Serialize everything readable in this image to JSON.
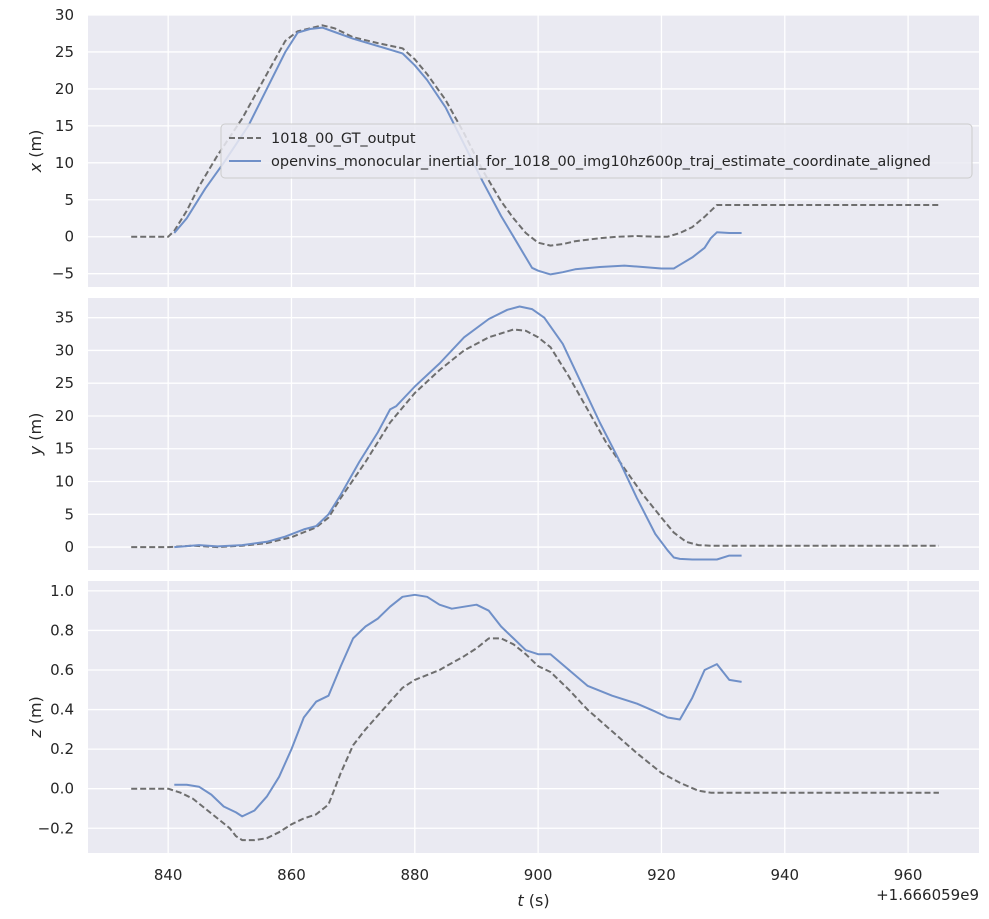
{
  "chart_data": {
    "type": "line",
    "x_label_var": "t",
    "x_label_unit": " (s)",
    "x_offset_text": "+1.666059e9",
    "x_ticks": [
      840,
      860,
      880,
      900,
      920,
      940,
      960
    ],
    "xlim": [
      827,
      971.5
    ],
    "legend": {
      "placement": "top-center of first panel",
      "entries": [
        "1018_00_GT_output",
        "openvins_monocular_inertial_for_1018_00_img10hz600p_traj_estimate_coordinate_aligned"
      ]
    },
    "colors": {
      "gt": "#6e6e6e",
      "est": "#7090c8",
      "background": "#eaeaf2",
      "grid": "#ffffff"
    },
    "panels": [
      {
        "var": "x",
        "unit": " (m)",
        "ylim": [
          -6.8,
          30
        ],
        "yticks": [
          -5,
          0,
          5,
          10,
          15,
          20,
          25,
          30
        ],
        "yticklabels": [
          "−5",
          "0",
          "5",
          "10",
          "15",
          "20",
          "25",
          "30"
        ],
        "series": [
          {
            "name": "1018_00_GT_output",
            "style": "dashed",
            "x": [
              834,
              837,
              840,
              841,
              843,
              845,
              848,
              852,
              856,
              859,
              861,
              863,
              865,
              867,
              870,
              874,
              878,
              880,
              882,
              885,
              888,
              891,
              894,
              896,
              898,
              900,
              902,
              904,
              906,
              908,
              910,
              913,
              916,
              919,
              921,
              923,
              925,
              927,
              929,
              935,
              945,
              955,
              965
            ],
            "y": [
              0,
              0,
              0,
              0.8,
              3.5,
              6.8,
              11,
              16,
              22,
              26.5,
              27.8,
              28.2,
              28.6,
              28.2,
              27,
              26.2,
              25.5,
              24,
              22,
              18.5,
              14,
              9,
              4.8,
              2.5,
              0.5,
              -0.8,
              -1.2,
              -1,
              -0.6,
              -0.4,
              -0.2,
              0,
              0.1,
              0,
              0,
              0.5,
              1.3,
              2.7,
              4.3,
              4.3,
              4.3,
              4.3,
              4.3
            ]
          },
          {
            "name": "openvins_monocular_inertial_for_1018_00_img10hz600p_traj_estimate_coordinate_aligned",
            "style": "solid",
            "x": [
              841,
              843,
              846,
              849,
              853,
              856,
              859,
              861,
              863,
              865,
              867,
              870,
              874,
              878,
              880,
              882,
              885,
              888,
              891,
              894,
              896,
              898,
              899,
              900,
              902,
              904,
              906,
              910,
              914,
              917,
              920,
              922,
              923,
              925,
              927,
              928,
              929,
              931,
              933
            ],
            "y": [
              0.5,
              2.5,
              6.5,
              10,
              15,
              20,
              25,
              27.6,
              28.1,
              28.3,
              27.7,
              26.8,
              25.8,
              24.8,
              23.2,
              21.2,
              17.5,
              12.5,
              7.5,
              2.8,
              0,
              -2.8,
              -4.2,
              -4.6,
              -5.1,
              -4.8,
              -4.4,
              -4.1,
              -3.9,
              -4.1,
              -4.3,
              -4.3,
              -3.8,
              -2.8,
              -1.5,
              -0.2,
              0.6,
              0.5,
              0.5
            ]
          }
        ]
      },
      {
        "var": "y",
        "unit": " (m)",
        "ylim": [
          -3.5,
          38
        ],
        "yticks": [
          0,
          5,
          10,
          15,
          20,
          25,
          30,
          35
        ],
        "yticklabels": [
          "0",
          "5",
          "10",
          "15",
          "20",
          "25",
          "30",
          "35"
        ],
        "series": [
          {
            "name": "1018_00_GT_output",
            "style": "dashed",
            "x": [
              834,
              840,
              844,
              848,
              852,
              856,
              860,
              864,
              866,
              868,
              872,
              876,
              880,
              884,
              888,
              892,
              896,
              898,
              900,
              902,
              905,
              908,
              911,
              914,
              917,
              920,
              922,
              924,
              926,
              928,
              935,
              945,
              955,
              965
            ],
            "y": [
              0,
              0,
              0.2,
              0,
              0.2,
              0.6,
              1.5,
              3,
              4.5,
              7.5,
              13,
              19,
              23.5,
              27,
              30,
              32,
              33.2,
              33,
              32,
              30.5,
              26,
              21,
              16,
              12,
              8,
              4.5,
              2.2,
              0.8,
              0.3,
              0.2,
              0.2,
              0.2,
              0.2,
              0.2
            ]
          },
          {
            "name": "openvins_monocular_inertial_for_1018_00_img10hz600p_traj_estimate_coordinate_aligned",
            "style": "solid",
            "x": [
              841,
              845,
              848,
              852,
              856,
              859,
              862,
              864,
              866,
              868,
              871,
              874,
              876,
              877,
              880,
              884,
              888,
              892,
              895,
              897,
              899,
              901,
              904,
              907,
              910,
              913,
              916,
              919,
              921,
              922,
              923,
              925,
              927,
              929,
              931,
              933
            ],
            "y": [
              0,
              0.3,
              0.1,
              0.3,
              0.8,
              1.6,
              2.7,
              3.2,
              5,
              8,
              13,
              17.5,
              21,
              21.5,
              24.5,
              28,
              32,
              34.8,
              36.2,
              36.7,
              36.3,
              35,
              31,
              25,
              19,
              13.5,
              7.5,
              2,
              -0.5,
              -1.6,
              -1.8,
              -1.9,
              -1.9,
              -1.9,
              -1.3,
              -1.3
            ]
          }
        ]
      },
      {
        "var": "z",
        "unit": " (m)",
        "ylim": [
          -0.325,
          1.05
        ],
        "yticks": [
          -0.2,
          0,
          0.2,
          0.4,
          0.6,
          0.8,
          1.0
        ],
        "yticklabels": [
          "−0.2",
          "0.0",
          "0.2",
          "0.4",
          "0.6",
          "0.8",
          "1.0"
        ],
        "series": [
          {
            "name": "1018_00_GT_output",
            "style": "dashed",
            "x": [
              834,
              838,
              840,
              842,
              844,
              846,
              848,
              850,
              851,
              852,
              854,
              856,
              858,
              860,
              862,
              864,
              866,
              868,
              870,
              872,
              874,
              876,
              878,
              880,
              884,
              888,
              890,
              892,
              894,
              896,
              898,
              900,
              902,
              905,
              908,
              912,
              916,
              920,
              923,
              926,
              928,
              935,
              945,
              955,
              965
            ],
            "y": [
              0,
              0,
              0,
              -0.02,
              -0.05,
              -0.1,
              -0.15,
              -0.2,
              -0.24,
              -0.26,
              -0.26,
              -0.25,
              -0.22,
              -0.18,
              -0.15,
              -0.13,
              -0.08,
              0.08,
              0.22,
              0.3,
              0.37,
              0.44,
              0.51,
              0.55,
              0.6,
              0.67,
              0.71,
              0.76,
              0.76,
              0.73,
              0.68,
              0.62,
              0.59,
              0.5,
              0.4,
              0.29,
              0.18,
              0.08,
              0.03,
              -0.01,
              -0.02,
              -0.02,
              -0.02,
              -0.02,
              -0.02
            ]
          },
          {
            "name": "openvins_monocular_inertial_for_1018_00_img10hz600p_traj_estimate_coordinate_aligned",
            "style": "solid",
            "x": [
              841,
              843,
              845,
              847,
              849,
              851,
              852,
              854,
              856,
              858,
              860,
              862,
              864,
              866,
              868,
              870,
              872,
              874,
              876,
              878,
              880,
              882,
              884,
              886,
              888,
              890,
              892,
              894,
              896,
              898,
              900,
              902,
              905,
              908,
              912,
              916,
              919,
              921,
              923,
              925,
              927,
              929,
              931,
              933
            ],
            "y": [
              0.02,
              0.02,
              0.01,
              -0.03,
              -0.09,
              -0.12,
              -0.14,
              -0.11,
              -0.04,
              0.06,
              0.2,
              0.36,
              0.44,
              0.47,
              0.62,
              0.76,
              0.82,
              0.86,
              0.92,
              0.97,
              0.98,
              0.97,
              0.93,
              0.91,
              0.92,
              0.93,
              0.9,
              0.82,
              0.76,
              0.7,
              0.68,
              0.68,
              0.6,
              0.52,
              0.47,
              0.43,
              0.39,
              0.36,
              0.35,
              0.46,
              0.6,
              0.63,
              0.55,
              0.54
            ]
          }
        ]
      }
    ]
  }
}
